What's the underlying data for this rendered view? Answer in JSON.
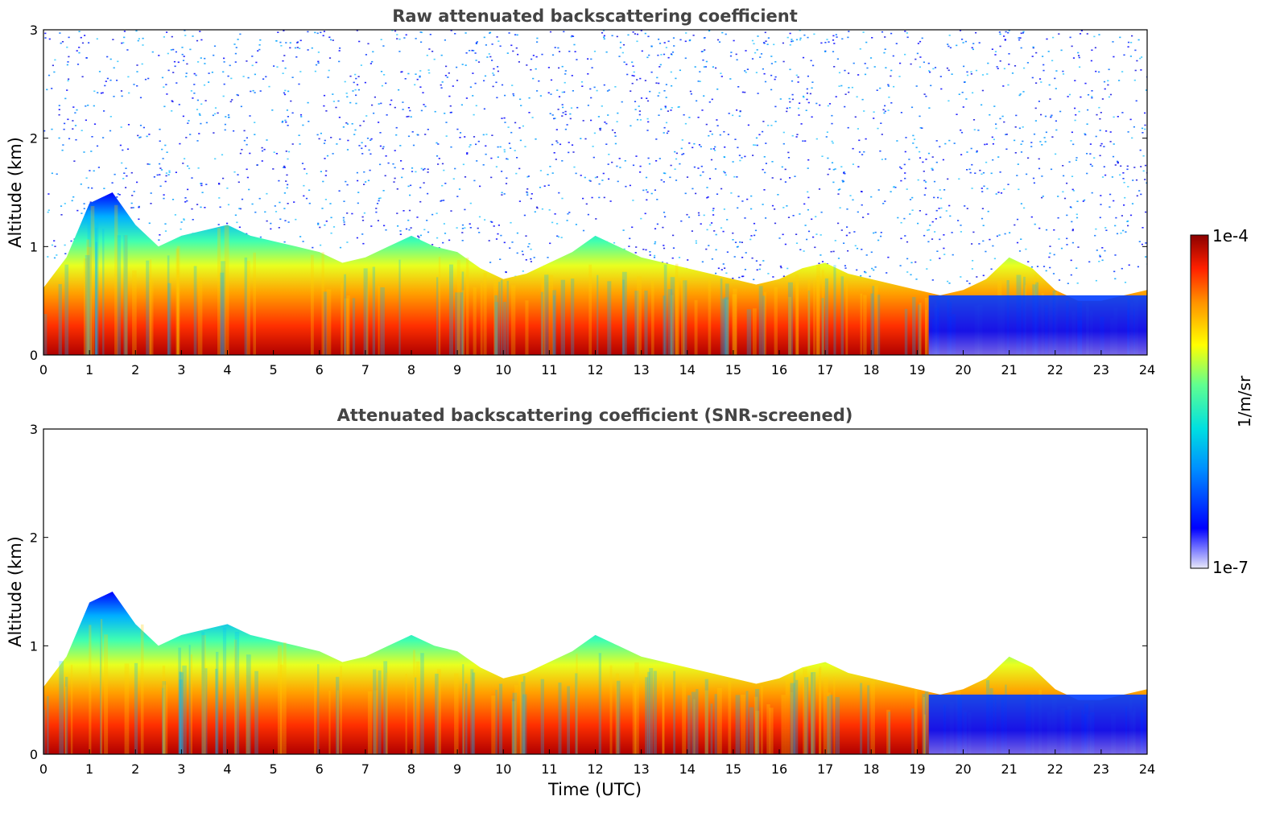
{
  "chart_data": [
    {
      "type": "heatmap",
      "title": "Raw attenuated backscattering coefficient",
      "xlabel": "",
      "ylabel": "Altitude (km)",
      "xlim": [
        0,
        24
      ],
      "ylim": [
        0,
        3
      ],
      "x_ticks": [
        "0",
        "1",
        "2",
        "3",
        "4",
        "5",
        "6",
        "7",
        "8",
        "9",
        "10",
        "11",
        "12",
        "13",
        "14",
        "15",
        "16",
        "17",
        "18",
        "19",
        "20",
        "21",
        "22",
        "23",
        "24"
      ],
      "y_ticks": [
        "0",
        "1",
        "2",
        "3"
      ],
      "grid": false,
      "noise_visible": true,
      "boundary_layer_top_km": [
        0.62,
        0.9,
        1.4,
        1.5,
        1.2,
        1.0,
        1.1,
        1.15,
        1.2,
        1.1,
        1.05,
        1.0,
        0.95,
        0.85,
        0.9,
        1.0,
        1.1,
        1.0,
        0.95,
        0.8,
        0.7,
        0.75,
        0.85,
        0.95,
        1.1,
        1.0,
        0.9,
        0.85,
        0.8,
        0.75,
        0.7,
        0.65,
        0.7,
        0.8,
        0.85,
        0.75,
        0.7,
        0.65,
        0.6,
        0.55,
        0.6,
        0.7,
        0.9,
        0.8,
        0.6,
        0.5,
        0.5,
        0.55,
        0.6
      ]
    },
    {
      "type": "heatmap",
      "title": "Attenuated backscattering coefficient (SNR-screened)",
      "xlabel": "Time (UTC)",
      "ylabel": "Altitude (km)",
      "xlim": [
        0,
        24
      ],
      "ylim": [
        0,
        3
      ],
      "x_ticks": [
        "0",
        "1",
        "2",
        "3",
        "4",
        "5",
        "6",
        "7",
        "8",
        "9",
        "10",
        "11",
        "12",
        "13",
        "14",
        "15",
        "16",
        "17",
        "18",
        "19",
        "20",
        "21",
        "22",
        "23",
        "24"
      ],
      "y_ticks": [
        "0",
        "1",
        "2",
        "3"
      ],
      "grid": false,
      "noise_visible": false,
      "boundary_layer_top_km": [
        0.62,
        0.9,
        1.4,
        1.5,
        1.2,
        1.0,
        1.1,
        1.15,
        1.2,
        1.1,
        1.05,
        1.0,
        0.95,
        0.85,
        0.9,
        1.0,
        1.1,
        1.0,
        0.95,
        0.8,
        0.7,
        0.75,
        0.85,
        0.95,
        1.1,
        1.0,
        0.9,
        0.85,
        0.8,
        0.75,
        0.7,
        0.65,
        0.7,
        0.8,
        0.85,
        0.75,
        0.7,
        0.65,
        0.6,
        0.55,
        0.6,
        0.7,
        0.9,
        0.8,
        0.6,
        0.5,
        0.5,
        0.55,
        0.6
      ]
    }
  ],
  "colorbar": {
    "label": "1/m/sr",
    "max_label": "1e-4",
    "min_label": "1e-7",
    "colormap": "jet",
    "colors": [
      "#e8e8f8",
      "#5050ff",
      "#0000ff",
      "#00a0ff",
      "#00e0e0",
      "#60ff90",
      "#ffff00",
      "#ff9000",
      "#ff2000",
      "#8b0000"
    ]
  }
}
